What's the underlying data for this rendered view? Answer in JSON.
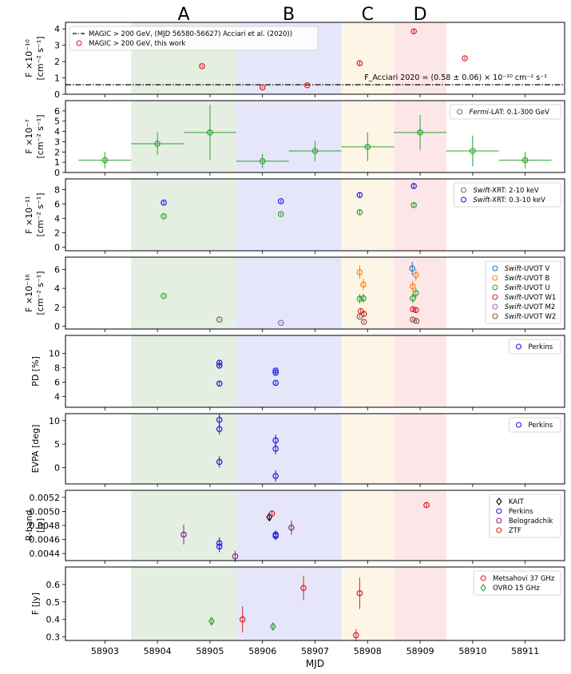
{
  "figure": {
    "xlabel": "MJD",
    "xlim": [
      58902.25,
      58911.75
    ],
    "xticks": [
      "58903",
      "58904",
      "58905",
      "58906",
      "58907",
      "58908",
      "58909",
      "58910",
      "58911"
    ],
    "periods": [
      {
        "label": "A",
        "start": 58903.5,
        "end": 58905.5,
        "fill": "#e4efe2",
        "text_color": "#4aa24a"
      },
      {
        "label": "B",
        "start": 58905.5,
        "end": 58907.5,
        "fill": "#e6e6fb",
        "text_color": "#4a4ae8"
      },
      {
        "label": "C",
        "start": 58907.5,
        "end": 58908.5,
        "fill": "#fdf5e6",
        "text_color": "#f0b830"
      },
      {
        "label": "D",
        "start": 58908.5,
        "end": 58909.5,
        "fill": "#fde6e8",
        "text_color": "#e84848"
      }
    ]
  },
  "chart_data": [
    {
      "type": "scatter",
      "id": "magic",
      "ylabel_lines": [
        "F ×10⁻¹⁰",
        "[cm⁻² s⁻¹]"
      ],
      "ylim": [
        0,
        4.4
      ],
      "yticks": [
        0,
        1,
        2,
        3,
        4
      ],
      "ytick_labels": [
        "0",
        "1",
        "2",
        "3",
        "4"
      ],
      "legend": "top-left",
      "hline": {
        "y": 0.58,
        "label": "MAGIC > 200 GeV, (MJD 56580-56627) Acciari et al. (2020))",
        "annotation": "F_Acciari 2020 = (0.58 ± 0.06) × 10⁻¹⁰ cm⁻² s⁻¹"
      },
      "series": [
        {
          "name": "MAGIC > 200 GeV, this work",
          "marker": "circle",
          "color": "#e41a1c",
          "x": [
            58904.85,
            58906.0,
            58906.85,
            58907.85,
            58908.88,
            58909.85
          ],
          "y": [
            1.72,
            0.42,
            0.55,
            1.9,
            3.85,
            2.2
          ],
          "yerr": [
            0.08,
            0.08,
            0.08,
            0.12,
            0.18,
            0.1
          ]
        }
      ]
    },
    {
      "type": "scatter",
      "id": "fermi",
      "ylabel_lines": [
        "F ×10⁻⁷",
        "[cm⁻² s⁻¹]"
      ],
      "ylim": [
        0,
        7
      ],
      "yticks": [
        0,
        1,
        2,
        3,
        4,
        5,
        6
      ],
      "ytick_labels": [
        "0",
        "1",
        "2",
        "3",
        "4",
        "5",
        "6"
      ],
      "legend": "top-right",
      "series": [
        {
          "name": "Fermi-LAT: 0.1-300 GeV",
          "marker": "circle",
          "color": "#2ca02c",
          "x": [
            58903.0,
            58904.0,
            58905.0,
            58906.0,
            58907.0,
            58908.0,
            58909.0,
            58910.0,
            58911.0
          ],
          "xerr": [
            0.5,
            0.5,
            0.5,
            0.5,
            0.5,
            0.5,
            0.5,
            0.5,
            0.5
          ],
          "y": [
            1.2,
            2.8,
            3.9,
            1.1,
            2.1,
            2.5,
            3.9,
            2.1,
            1.2
          ],
          "yerr": [
            0.8,
            1.1,
            2.7,
            0.7,
            1.0,
            1.4,
            1.7,
            1.5,
            0.8
          ]
        }
      ]
    },
    {
      "type": "scatter",
      "id": "xrt",
      "ylabel_lines": [
        "F ×10⁻¹¹",
        "[cm⁻² s⁻¹]"
      ],
      "ylim": [
        -0.5,
        9.5
      ],
      "yticks": [
        0,
        2,
        4,
        6,
        8
      ],
      "ytick_labels": [
        "0",
        "2",
        "4",
        "6",
        "8"
      ],
      "legend": "top-right",
      "series": [
        {
          "name": "Swift-XRT: 2-10 keV",
          "marker": "circle",
          "color": "#2ca02c",
          "x": [
            58904.12,
            58906.35,
            58907.85,
            58908.88
          ],
          "y": [
            4.3,
            4.6,
            4.85,
            5.85
          ],
          "yerr": [
            0.2,
            0.2,
            0.35,
            0.4
          ]
        },
        {
          "name": "Swift-XRT: 0.3-10 keV",
          "marker": "circle",
          "color": "#1a1adc",
          "x": [
            58904.12,
            58906.35,
            58907.85,
            58908.88
          ],
          "y": [
            6.2,
            6.4,
            7.25,
            8.5
          ],
          "yerr": [
            0.2,
            0.2,
            0.35,
            0.4
          ]
        }
      ]
    },
    {
      "type": "scatter",
      "id": "uvot",
      "ylabel_lines": [
        "F ×10⁻¹⁶",
        "[cm⁻² s⁻¹]"
      ],
      "ylim": [
        -0.3,
        7.3
      ],
      "yticks": [
        0,
        2,
        4,
        6
      ],
      "ytick_labels": [
        "0",
        "2",
        "4",
        "6"
      ],
      "legend": "top-right",
      "series": [
        {
          "name": "Swift-UVOT V",
          "marker": "circle",
          "color": "#1f77b4",
          "x": [
            58908.85
          ],
          "y": [
            6.1
          ],
          "yerr": [
            0.7
          ]
        },
        {
          "name": "Swift-UVOT B",
          "marker": "circle",
          "color": "#ff7f0e",
          "x": [
            58907.85,
            58907.92,
            58908.86,
            58908.92
          ],
          "y": [
            5.7,
            4.4,
            4.2,
            5.4
          ],
          "yerr": [
            0.7,
            0.6,
            0.6,
            0.6
          ]
        },
        {
          "name": "Swift-UVOT U",
          "marker": "circle",
          "color": "#2ca02c",
          "x": [
            58904.12,
            58907.85,
            58907.92,
            58908.86,
            58908.92
          ],
          "y": [
            3.2,
            2.9,
            2.95,
            2.95,
            3.5
          ],
          "yerr": [
            0.1,
            0.5,
            0.5,
            0.5,
            0.5
          ]
        },
        {
          "name": "Swift-UVOT W1",
          "marker": "circle",
          "color": "#d62728",
          "x": [
            58907.87,
            58907.93,
            58908.86,
            58908.92
          ],
          "y": [
            1.6,
            1.3,
            1.8,
            1.7
          ],
          "yerr": [
            0.25,
            0.25,
            0.25,
            0.25
          ]
        },
        {
          "name": "Swift-UVOT M2",
          "marker": "circle",
          "color": "#9467bd",
          "x": [
            58906.35
          ],
          "y": [
            0.35
          ],
          "yerr": [
            0.05
          ]
        },
        {
          "name": "Swift-UVOT W2",
          "marker": "circle",
          "color": "#8c564b",
          "x": [
            58905.18,
            58907.85,
            58907.93,
            58908.86,
            58908.93
          ],
          "y": [
            0.7,
            1.0,
            0.45,
            0.7,
            0.55
          ],
          "yerr": [
            0.05,
            0.15,
            0.15,
            0.15,
            0.15
          ]
        }
      ]
    },
    {
      "type": "scatter",
      "id": "pd",
      "ylabel_lines": [
        "PD [%]"
      ],
      "ylim": [
        2.5,
        12.5
      ],
      "yticks": [
        4,
        6,
        8,
        10
      ],
      "ytick_labels": [
        "4",
        "6",
        "8",
        "10"
      ],
      "legend": "top-right",
      "series": [
        {
          "name": "Perkins",
          "marker": "circle",
          "color": "#1a1adc",
          "x": [
            58905.18,
            58905.18,
            58905.18,
            58906.25,
            58906.25,
            58906.25
          ],
          "y": [
            8.7,
            8.3,
            5.8,
            7.6,
            7.3,
            5.9
          ],
          "yerr": [
            0.25,
            0.25,
            0.25,
            0.25,
            0.25,
            0.25
          ]
        }
      ]
    },
    {
      "type": "scatter",
      "id": "evpa",
      "ylabel_lines": [
        "EVPA [deg]"
      ],
      "ylim": [
        -3.5,
        11.5
      ],
      "yticks": [
        0,
        5,
        10
      ],
      "ytick_labels": [
        "0",
        "5",
        "10"
      ],
      "legend": "top-right",
      "series": [
        {
          "name": "Perkins",
          "marker": "circle",
          "color": "#1a1adc",
          "x": [
            58905.18,
            58905.18,
            58905.18,
            58906.25,
            58906.25,
            58906.25
          ],
          "y": [
            10.2,
            8.2,
            1.2,
            5.8,
            4.0,
            -1.8
          ],
          "yerr": [
            1.2,
            1.2,
            1.2,
            1.2,
            1.2,
            1.2
          ]
        }
      ]
    },
    {
      "type": "scatter",
      "id": "rband",
      "ylabel_lines": [
        "R-band",
        "[Jy]"
      ],
      "ylim": [
        0.0043,
        0.0053
      ],
      "yticks": [
        0.0044,
        0.0046,
        0.0048,
        0.005,
        0.0052
      ],
      "ytick_labels": [
        "0.0044",
        "0.0046",
        "0.0048",
        "0.0050",
        "0.0052"
      ],
      "legend": "top-right",
      "series": [
        {
          "name": "KAIT",
          "marker": "diamond",
          "color": "#000000",
          "x": [
            58906.13
          ],
          "y": [
            0.00492
          ],
          "yerr": [
            6e-05
          ]
        },
        {
          "name": "Perkins",
          "marker": "circle",
          "color": "#1a1adc",
          "x": [
            58905.18,
            58905.18,
            58906.25,
            58906.25
          ],
          "y": [
            0.00455,
            0.0045,
            0.00467,
            0.00465
          ],
          "yerr": [
            8e-05,
            8e-05,
            6e-05,
            6e-05
          ]
        },
        {
          "name": "Belogradchik",
          "marker": "circle",
          "color": "#7b2a8c",
          "x": [
            58904.5,
            58905.48,
            58906.55
          ],
          "y": [
            0.00467,
            0.00436,
            0.00477
          ],
          "yerr": [
            0.00014,
            8e-05,
            0.0001
          ]
        },
        {
          "name": "ZTF",
          "marker": "circle",
          "color": "#e41a1c",
          "x": [
            58906.18,
            58909.12
          ],
          "y": [
            0.00497,
            0.00509
          ],
          "yerr": [
            4e-05,
            3e-05
          ]
        }
      ]
    },
    {
      "type": "scatter",
      "id": "radio",
      "ylabel_lines": [
        "F [Jy]"
      ],
      "ylim": [
        0.28,
        0.7
      ],
      "yticks": [
        0.3,
        0.4,
        0.5,
        0.6
      ],
      "ytick_labels": [
        "0.3",
        "0.4",
        "0.5",
        "0.6"
      ],
      "legend": "top-right",
      "series": [
        {
          "name": "Metsahovi 37 GHz",
          "marker": "circle",
          "color": "#e41a1c",
          "x": [
            58905.62,
            58906.78,
            58907.78,
            58907.85
          ],
          "y": [
            0.4,
            0.58,
            0.31,
            0.55
          ],
          "yerr": [
            0.075,
            0.07,
            0.035,
            0.09
          ]
        },
        {
          "name": "OVRO 15 GHz",
          "marker": "diamond",
          "color": "#2ca02c",
          "x": [
            58905.03,
            58906.2
          ],
          "y": [
            0.39,
            0.36
          ],
          "yerr": [
            0.012,
            0.012
          ]
        }
      ]
    }
  ]
}
